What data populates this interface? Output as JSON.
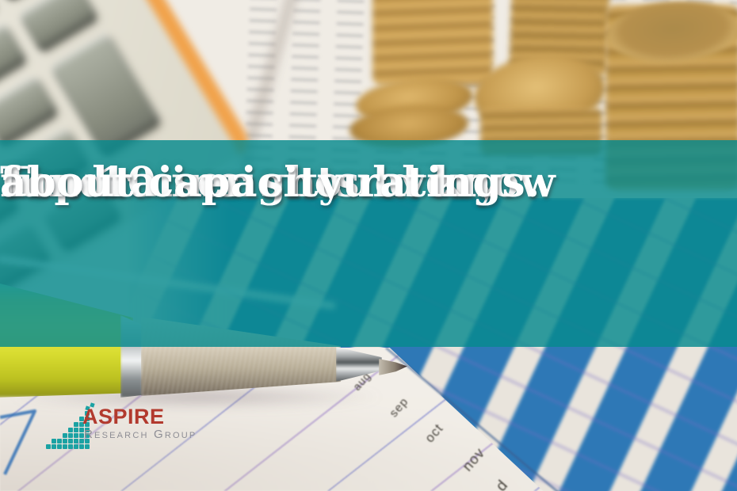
{
  "banner": {
    "headline_lines": [
      "Top 10 insights every",
      "fundraiser should know",
      "about capacity ratings."
    ],
    "overlay_color": "#2e9b9e",
    "text_color": "#ffffff"
  },
  "logo": {
    "name": "ASPIRE",
    "subtitle": "Research Group",
    "name_color": "#b23a2e",
    "subtitle_color": "#8e8e95",
    "icon": "bar-chart-squares-icon",
    "icon_color": "#1ba2a3",
    "icon_bar_heights": [
      1,
      2,
      2,
      3,
      4,
      5,
      6,
      7
    ]
  },
  "photo": {
    "scene": "blurred desk with calculator, stacked gold coins, pen and printed bar charts",
    "calculator": {
      "body_color": "#eceae2",
      "key_color": "#878b7d",
      "edge_accent_color": "#f1a34c"
    },
    "coins_color": "#c79e55",
    "pen": {
      "barrel_color": "#d8dc30",
      "grip_color": "#c9bfae"
    },
    "printed_chart": {
      "bar_color": "#2e78b6",
      "month_labels": [
        "aug",
        "sep",
        "oct",
        "nov",
        "d"
      ],
      "label_color": "#4a463f"
    }
  }
}
